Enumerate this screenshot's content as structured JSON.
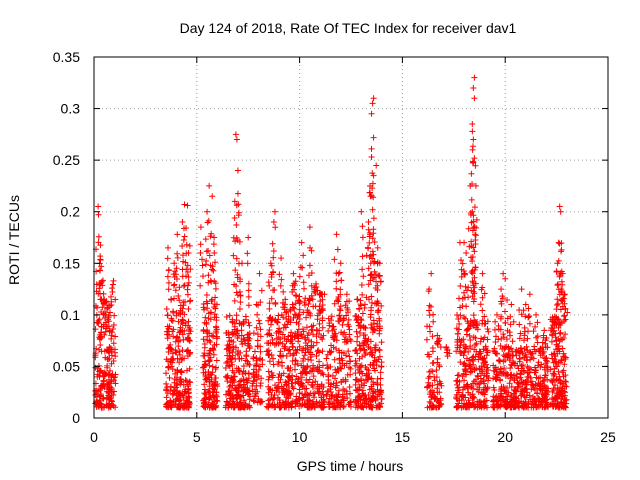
{
  "chart_data": {
    "type": "scatter",
    "title": "Day 124 of 2018, Rate Of TEC Index for receiver dav1",
    "xlabel": "GPS time / hours",
    "ylabel": "ROTI / TECUs",
    "xlim": [
      0,
      25
    ],
    "ylim": [
      0,
      0.35
    ],
    "xticks": [
      0,
      5,
      10,
      15,
      20,
      25
    ],
    "yticks": [
      0,
      0.05,
      0.1,
      0.15,
      0.2,
      0.25,
      0.3,
      0.35
    ],
    "grid": true,
    "marker": "+",
    "series": [
      {
        "name": "ROTI",
        "color": "#ff0000",
        "clusters": [
          {
            "x_range": [
              0.05,
              1.05
            ],
            "y_range": [
              0.01,
              0.11
            ],
            "count": 200,
            "peaks": [
              [
                0.2,
                0.205
              ],
              [
                0.22,
                0.197
              ],
              [
                0.3,
                0.157
              ],
              [
                0.35,
                0.147
              ],
              [
                0.95,
                0.133
              ],
              [
                0.5,
                0.115
              ]
            ]
          },
          {
            "x_range": [
              3.5,
              4.7
            ],
            "y_range": [
              0.01,
              0.12
            ],
            "count": 240,
            "peaks": [
              [
                3.6,
                0.165
              ],
              [
                4.05,
                0.178
              ],
              [
                4.4,
                0.207
              ],
              [
                4.55,
                0.206
              ],
              [
                4.3,
                0.19
              ],
              [
                4.6,
                0.16
              ],
              [
                3.9,
                0.15
              ]
            ]
          },
          {
            "x_range": [
              5.3,
              6.0
            ],
            "y_range": [
              0.01,
              0.12
            ],
            "count": 180,
            "peaks": [
              [
                5.6,
                0.225
              ],
              [
                5.75,
                0.215
              ],
              [
                5.5,
                0.2
              ],
              [
                5.85,
                0.16
              ],
              [
                5.2,
                0.185
              ]
            ]
          },
          {
            "x_range": [
              6.4,
              7.6
            ],
            "y_range": [
              0.01,
              0.1
            ],
            "count": 240,
            "peaks": [
              [
                6.9,
                0.275
              ],
              [
                6.95,
                0.27
              ],
              [
                7.0,
                0.24
              ],
              [
                6.85,
                0.21
              ],
              [
                7.5,
                0.175
              ],
              [
                7.2,
                0.15
              ]
            ]
          },
          {
            "x_range": [
              7.7,
              8.2
            ],
            "y_range": [
              0.015,
              0.07
            ],
            "count": 50,
            "peaks": [
              [
                8.05,
                0.14
              ],
              [
                7.9,
                0.11
              ]
            ]
          },
          {
            "x_range": [
              8.4,
              9.5
            ],
            "y_range": [
              0.01,
              0.1
            ],
            "count": 170,
            "peaks": [
              [
                8.8,
                0.2
              ],
              [
                8.75,
                0.19
              ],
              [
                8.6,
                0.15
              ],
              [
                9.1,
                0.155
              ],
              [
                9.3,
                0.115
              ]
            ]
          },
          {
            "x_range": [
              9.5,
              11.2
            ],
            "y_range": [
              0.01,
              0.12
            ],
            "count": 300,
            "peaks": [
              [
                10.5,
                0.185
              ],
              [
                10.1,
                0.17
              ],
              [
                9.7,
                0.14
              ],
              [
                10.8,
                0.13
              ],
              [
                11.1,
                0.12
              ]
            ]
          },
          {
            "x_range": [
              11.3,
              12.5
            ],
            "y_range": [
              0.01,
              0.1
            ],
            "count": 170,
            "peaks": [
              [
                11.8,
                0.178
              ],
              [
                12.0,
                0.15
              ],
              [
                11.9,
                0.14
              ],
              [
                12.3,
                0.12
              ]
            ]
          },
          {
            "x_range": [
              12.7,
              14.0
            ],
            "y_range": [
              0.01,
              0.12
            ],
            "count": 260,
            "peaks": [
              [
                13.6,
                0.31
              ],
              [
                13.55,
                0.305
              ],
              [
                13.5,
                0.295
              ],
              [
                13.5,
                0.253
              ],
              [
                13.6,
                0.235
              ],
              [
                13.45,
                0.215
              ],
              [
                13.35,
                0.19
              ],
              [
                13.0,
                0.2
              ],
              [
                13.8,
                0.165
              ],
              [
                13.9,
                0.15
              ]
            ]
          },
          {
            "x_range": [
              16.2,
              16.9
            ],
            "y_range": [
              0.01,
              0.07
            ],
            "count": 70,
            "peaks": [
              [
                16.4,
                0.14
              ],
              [
                16.3,
                0.125
              ],
              [
                16.7,
                0.08
              ],
              [
                17.2,
                0.06
              ]
            ]
          },
          {
            "x_range": [
              17.6,
              19.2
            ],
            "y_range": [
              0.01,
              0.1
            ],
            "count": 280,
            "peaks": [
              [
                18.5,
                0.33
              ],
              [
                18.45,
                0.32
              ],
              [
                18.5,
                0.31
              ],
              [
                18.4,
                0.285
              ],
              [
                18.45,
                0.27
              ],
              [
                18.5,
                0.252
              ],
              [
                18.45,
                0.248
              ],
              [
                18.3,
                0.225
              ],
              [
                18.4,
                0.2
              ],
              [
                18.1,
                0.16
              ],
              [
                18.0,
                0.17
              ],
              [
                17.8,
                0.17
              ],
              [
                18.9,
                0.14
              ]
            ]
          },
          {
            "x_range": [
              19.4,
              20.5
            ],
            "y_range": [
              0.01,
              0.07
            ],
            "count": 170,
            "peaks": [
              [
                19.9,
                0.14
              ],
              [
                19.8,
                0.125
              ],
              [
                20.0,
                0.135
              ],
              [
                20.3,
                0.11
              ],
              [
                19.6,
                0.1
              ]
            ]
          },
          {
            "x_range": [
              20.5,
              22.1
            ],
            "y_range": [
              0.01,
              0.07
            ],
            "count": 250,
            "peaks": [
              [
                21.2,
                0.12
              ],
              [
                21.0,
                0.11
              ],
              [
                21.5,
                0.1
              ],
              [
                20.8,
                0.125
              ],
              [
                21.9,
                0.085
              ]
            ]
          },
          {
            "x_range": [
              22.2,
              23.0
            ],
            "y_range": [
              0.01,
              0.1
            ],
            "count": 170,
            "peaks": [
              [
                22.65,
                0.205
              ],
              [
                22.7,
                0.2
              ],
              [
                22.6,
                0.17
              ],
              [
                22.55,
                0.15
              ],
              [
                22.8,
                0.14
              ],
              [
                22.9,
                0.12
              ]
            ]
          }
        ]
      }
    ]
  }
}
